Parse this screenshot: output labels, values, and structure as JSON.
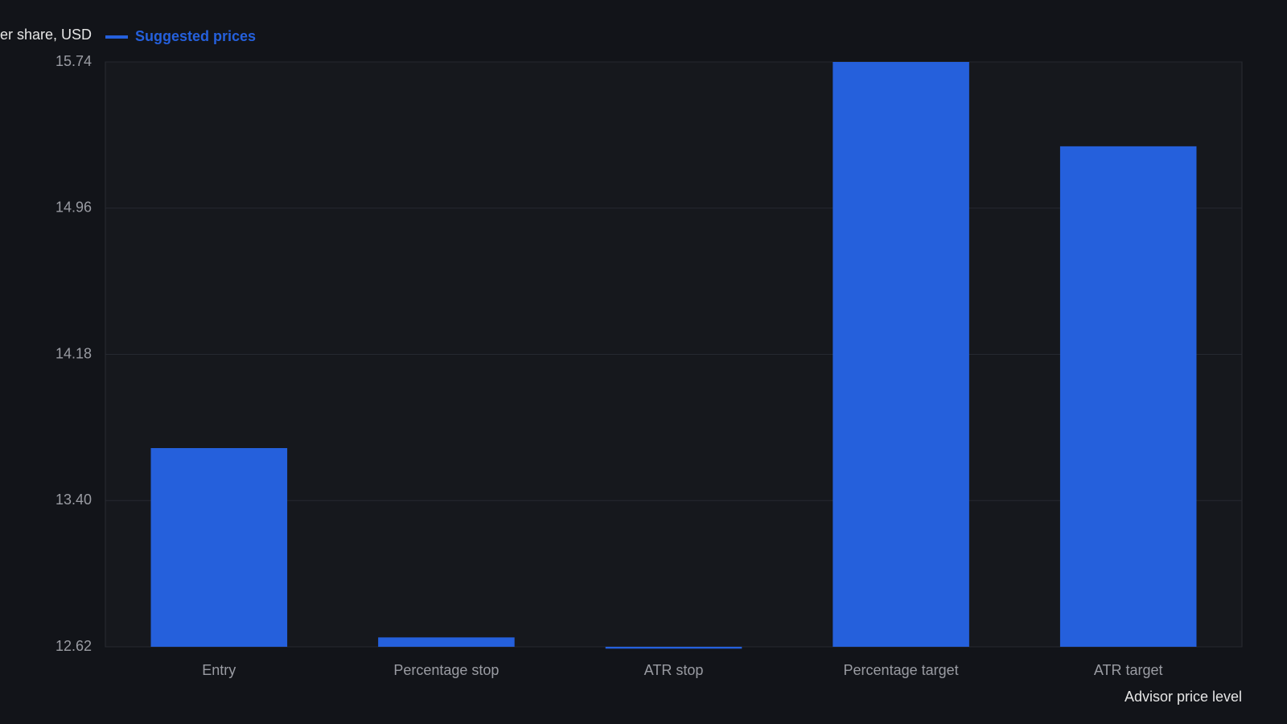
{
  "chart_data": {
    "type": "bar",
    "y_label": "er share, USD",
    "x_label": "Advisor price level",
    "categories": [
      "Entry",
      "Percentage stop",
      "ATR stop",
      "Percentage target",
      "ATR target"
    ],
    "series": [
      {
        "name": "Suggested prices",
        "color": "#2560dc",
        "values": [
          13.68,
          12.67,
          12.61,
          15.74,
          15.29
        ]
      }
    ],
    "ylim": [
      12.62,
      15.74
    ],
    "yticks": [
      {
        "value": 12.62,
        "label": "12.62"
      },
      {
        "value": 13.4,
        "label": "13.40"
      },
      {
        "value": 14.18,
        "label": "14.18"
      },
      {
        "value": 14.96,
        "label": "14.96"
      },
      {
        "value": 15.74,
        "label": "15.74"
      }
    ],
    "grid": true
  }
}
